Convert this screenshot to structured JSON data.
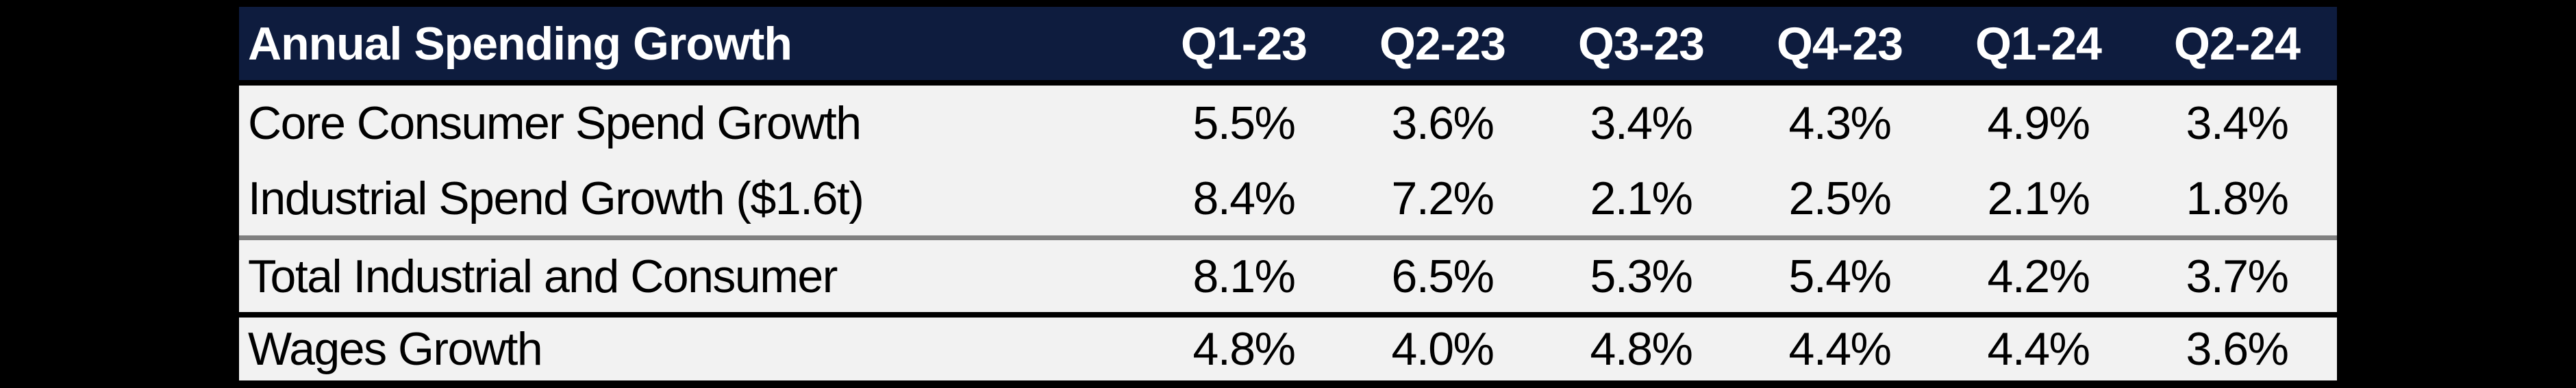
{
  "colors": {
    "canvas-bg": "#000000",
    "header-bg": "#0E1C3E",
    "header-text": "#FFFFFF",
    "row-bg": "#F2F2F2",
    "body-text": "#000000",
    "rule-black": "#000000",
    "rule-gray": "#808080"
  },
  "table": {
    "title": "Annual Spending Growth",
    "columns": [
      "Q1-23",
      "Q2-23",
      "Q3-23",
      "Q4-23",
      "Q1-24",
      "Q2-24"
    ],
    "rows": [
      {
        "label": "Core Consumer Spend Growth",
        "values": [
          "5.5%",
          "3.6%",
          "3.4%",
          "4.3%",
          "4.9%",
          "3.4%"
        ]
      },
      {
        "label": "Industrial Spend Growth ($1.6t)",
        "values": [
          "8.4%",
          "7.2%",
          "2.1%",
          "2.5%",
          "2.1%",
          "1.8%"
        ]
      },
      {
        "label": "Total Industrial and Consumer",
        "values": [
          "8.1%",
          "6.5%",
          "5.3%",
          "5.4%",
          "4.2%",
          "3.7%"
        ]
      },
      {
        "label": "Wages Growth",
        "values": [
          "4.8%",
          "4.0%",
          "4.8%",
          "4.4%",
          "4.4%",
          "3.6%"
        ]
      }
    ]
  },
  "chart_data": {
    "type": "table",
    "title": "Annual Spending Growth",
    "columns": [
      "Q1-23",
      "Q2-23",
      "Q3-23",
      "Q4-23",
      "Q1-24",
      "Q2-24"
    ],
    "unit": "percent",
    "rows": [
      {
        "label": "Core Consumer Spend Growth",
        "values_pct": [
          5.5,
          3.6,
          3.4,
          4.3,
          4.9,
          3.4
        ]
      },
      {
        "label": "Industrial Spend Growth ($1.6t)",
        "values_pct": [
          8.4,
          7.2,
          2.1,
          2.5,
          2.1,
          1.8
        ]
      },
      {
        "label": "Total Industrial and Consumer",
        "values_pct": [
          8.1,
          6.5,
          5.3,
          5.4,
          4.2,
          3.7
        ]
      },
      {
        "label": "Wages Growth",
        "values_pct": [
          4.8,
          4.0,
          4.8,
          4.4,
          4.4,
          3.6
        ]
      }
    ],
    "layout": {
      "header_style": "dark-navy, white bold text",
      "separators": [
        "black rule under header",
        "gray rule after row 2",
        "thick black rule after row 3",
        "thick black bottom border"
      ],
      "value_alignment": "center",
      "background": "black"
    }
  }
}
